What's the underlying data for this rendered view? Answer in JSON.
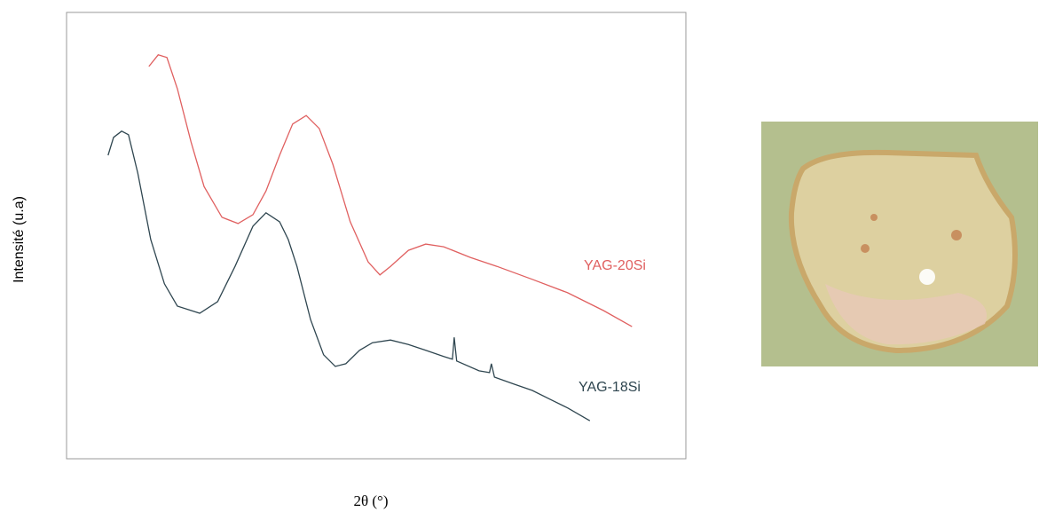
{
  "chart_data": {
    "type": "line",
    "xlabel": "2θ (°)",
    "ylabel": "Intensité (u.a)",
    "xlim": [
      0,
      100
    ],
    "ylim": [
      0,
      100
    ],
    "series": [
      {
        "name": "YAG-20Si",
        "color": "#e06060",
        "x": [
          13.3,
          14.8,
          16.2,
          17.9,
          20.1,
          22.2,
          25.1,
          27.7,
          30.1,
          32.2,
          34.4,
          36.5,
          38.7,
          40.8,
          43.0,
          45.8,
          48.7,
          50.6,
          52.3,
          55.2,
          58.0,
          60.9,
          65.2,
          69.5,
          75.2,
          80.9,
          86.7,
          91.3
        ],
        "values": [
          87.9,
          90.5,
          89.9,
          82.9,
          71.0,
          61.0,
          54.1,
          52.7,
          54.7,
          60.0,
          68.0,
          75.0,
          76.9,
          74.0,
          66.0,
          53.1,
          44.1,
          41.2,
          43.1,
          46.7,
          48.1,
          47.5,
          45.1,
          43.1,
          40.2,
          37.2,
          33.2,
          29.6
        ]
      },
      {
        "name": "YAG-18Si",
        "color": "#2f4650",
        "x": [
          6.7,
          7.6,
          8.9,
          10.0,
          11.5,
          13.6,
          15.8,
          17.9,
          21.5,
          24.4,
          27.2,
          30.1,
          32.2,
          34.4,
          35.8,
          37.2,
          39.4,
          41.5,
          43.4,
          45.1,
          47.3,
          49.4,
          52.3,
          55.2,
          58.0,
          60.9,
          62.3,
          62.6,
          63.0,
          66.6,
          68.3,
          68.6,
          69.1,
          72.3,
          75.2,
          78.1,
          80.9,
          84.5
        ],
        "values": [
          68.0,
          72.0,
          73.4,
          72.6,
          64.0,
          49.1,
          39.2,
          34.2,
          32.6,
          35.2,
          43.1,
          52.1,
          55.1,
          53.1,
          49.1,
          43.1,
          31.2,
          23.3,
          20.7,
          21.3,
          24.3,
          26.0,
          26.6,
          25.6,
          24.3,
          22.9,
          22.3,
          27.2,
          21.9,
          19.7,
          19.3,
          21.3,
          18.3,
          16.7,
          15.3,
          13.3,
          11.4,
          8.5
        ]
      }
    ]
  }
}
